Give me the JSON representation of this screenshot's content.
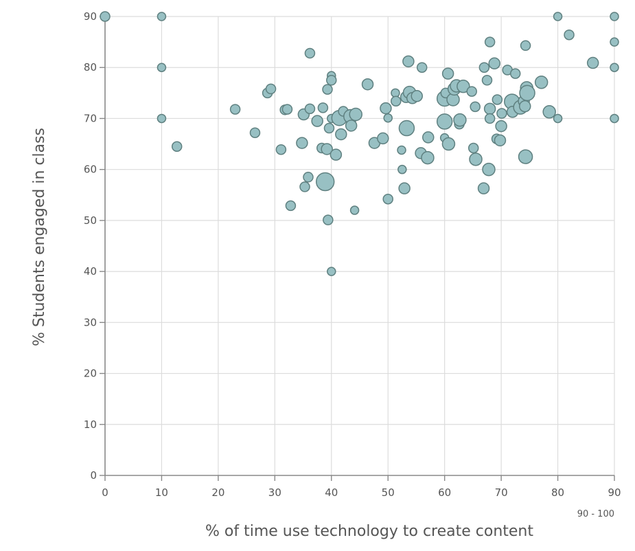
{
  "chart_data": {
    "type": "scatter",
    "title": "",
    "xlabel": "% of time use technology to create content",
    "ylabel": "% Students engaged in class",
    "x_ticks": [
      0,
      10,
      20,
      30,
      40,
      50,
      60,
      70,
      80,
      90
    ],
    "y_ticks": [
      0,
      10,
      20,
      30,
      40,
      50,
      60,
      70,
      80,
      90
    ],
    "x_tick_annotation": "90 - 100",
    "xlim": [
      0,
      90
    ],
    "ylim": [
      0,
      90
    ],
    "grid": true,
    "legend": null,
    "marker_color": "#98c0c3",
    "marker_edge_color": "#5f8080",
    "points": [
      {
        "x": 0,
        "y": 90,
        "r": 7
      },
      {
        "x": 10,
        "y": 90,
        "r": 6
      },
      {
        "x": 10,
        "y": 80,
        "r": 6
      },
      {
        "x": 10,
        "y": 70,
        "r": 6
      },
      {
        "x": 12.7,
        "y": 64.5,
        "r": 7
      },
      {
        "x": 23,
        "y": 71.8,
        "r": 7
      },
      {
        "x": 26.5,
        "y": 67.2,
        "r": 7
      },
      {
        "x": 28.7,
        "y": 75,
        "r": 7
      },
      {
        "x": 29.3,
        "y": 75.8,
        "r": 7
      },
      {
        "x": 31.1,
        "y": 63.9,
        "r": 7
      },
      {
        "x": 31.8,
        "y": 71.7,
        "r": 7
      },
      {
        "x": 32.2,
        "y": 71.8,
        "r": 7
      },
      {
        "x": 32.8,
        "y": 52.9,
        "r": 7
      },
      {
        "x": 34.8,
        "y": 65.2,
        "r": 8
      },
      {
        "x": 35.1,
        "y": 70.8,
        "r": 8
      },
      {
        "x": 35.3,
        "y": 56.6,
        "r": 7
      },
      {
        "x": 35.9,
        "y": 58.5,
        "r": 7
      },
      {
        "x": 36.2,
        "y": 82.8,
        "r": 7
      },
      {
        "x": 36.2,
        "y": 71.9,
        "r": 7
      },
      {
        "x": 37.5,
        "y": 69.5,
        "r": 8
      },
      {
        "x": 38.3,
        "y": 64.2,
        "r": 7
      },
      {
        "x": 38.5,
        "y": 72.1,
        "r": 7
      },
      {
        "x": 38.9,
        "y": 57.6,
        "r": 13
      },
      {
        "x": 39.2,
        "y": 64,
        "r": 8
      },
      {
        "x": 39.3,
        "y": 75.7,
        "r": 7
      },
      {
        "x": 39.4,
        "y": 50.1,
        "r": 7
      },
      {
        "x": 39.6,
        "y": 68.1,
        "r": 7
      },
      {
        "x": 40,
        "y": 78.4,
        "r": 6
      },
      {
        "x": 40,
        "y": 77.5,
        "r": 7
      },
      {
        "x": 40,
        "y": 70,
        "r": 6
      },
      {
        "x": 40,
        "y": 40,
        "r": 6
      },
      {
        "x": 40.8,
        "y": 62.9,
        "r": 8
      },
      {
        "x": 41.4,
        "y": 70.1,
        "r": 11
      },
      {
        "x": 41.7,
        "y": 66.9,
        "r": 8
      },
      {
        "x": 42.1,
        "y": 71.4,
        "r": 7
      },
      {
        "x": 43.4,
        "y": 70.4,
        "r": 10
      },
      {
        "x": 43.5,
        "y": 68.6,
        "r": 8
      },
      {
        "x": 44.1,
        "y": 52,
        "r": 6
      },
      {
        "x": 44.3,
        "y": 70.8,
        "r": 9
      },
      {
        "x": 46.4,
        "y": 76.7,
        "r": 8
      },
      {
        "x": 47.6,
        "y": 65.2,
        "r": 8
      },
      {
        "x": 49.1,
        "y": 66.1,
        "r": 8
      },
      {
        "x": 49.6,
        "y": 72,
        "r": 8
      },
      {
        "x": 50,
        "y": 70.1,
        "r": 6
      },
      {
        "x": 50,
        "y": 54.2,
        "r": 7
      },
      {
        "x": 51.3,
        "y": 75,
        "r": 6
      },
      {
        "x": 51.4,
        "y": 73.4,
        "r": 7
      },
      {
        "x": 52.4,
        "y": 63.8,
        "r": 6
      },
      {
        "x": 52.5,
        "y": 60,
        "r": 6
      },
      {
        "x": 52.9,
        "y": 56.3,
        "r": 8
      },
      {
        "x": 53.2,
        "y": 74.2,
        "r": 8
      },
      {
        "x": 53.3,
        "y": 68.1,
        "r": 11
      },
      {
        "x": 53.6,
        "y": 81.2,
        "r": 8
      },
      {
        "x": 53.8,
        "y": 75.1,
        "r": 9
      },
      {
        "x": 54.3,
        "y": 74,
        "r": 8
      },
      {
        "x": 55.1,
        "y": 74.4,
        "r": 8
      },
      {
        "x": 55.8,
        "y": 63.2,
        "r": 8
      },
      {
        "x": 56,
        "y": 80,
        "r": 7
      },
      {
        "x": 57,
        "y": 62.3,
        "r": 9
      },
      {
        "x": 57.1,
        "y": 66.3,
        "r": 8
      },
      {
        "x": 60,
        "y": 69.4,
        "r": 11
      },
      {
        "x": 60,
        "y": 73.9,
        "r": 11
      },
      {
        "x": 60,
        "y": 66.2,
        "r": 6
      },
      {
        "x": 60.2,
        "y": 75,
        "r": 7
      },
      {
        "x": 60.6,
        "y": 78.8,
        "r": 8
      },
      {
        "x": 60.7,
        "y": 65,
        "r": 9
      },
      {
        "x": 61.5,
        "y": 73.7,
        "r": 9
      },
      {
        "x": 61.7,
        "y": 75.8,
        "r": 9
      },
      {
        "x": 62.1,
        "y": 76.4,
        "r": 9
      },
      {
        "x": 62.6,
        "y": 68.9,
        "r": 7
      },
      {
        "x": 62.7,
        "y": 69.7,
        "r": 9
      },
      {
        "x": 63.3,
        "y": 76.3,
        "r": 9
      },
      {
        "x": 64.8,
        "y": 75.3,
        "r": 7
      },
      {
        "x": 65.1,
        "y": 64.2,
        "r": 7
      },
      {
        "x": 65.4,
        "y": 72.3,
        "r": 7
      },
      {
        "x": 65.5,
        "y": 62,
        "r": 9
      },
      {
        "x": 66.9,
        "y": 56.3,
        "r": 8
      },
      {
        "x": 67,
        "y": 80,
        "r": 7
      },
      {
        "x": 67.5,
        "y": 77.5,
        "r": 7
      },
      {
        "x": 67.8,
        "y": 60,
        "r": 9
      },
      {
        "x": 68,
        "y": 85,
        "r": 7
      },
      {
        "x": 68,
        "y": 71.9,
        "r": 8
      },
      {
        "x": 68,
        "y": 70,
        "r": 7
      },
      {
        "x": 68.8,
        "y": 80.8,
        "r": 8
      },
      {
        "x": 69.2,
        "y": 66,
        "r": 7
      },
      {
        "x": 69.3,
        "y": 73.7,
        "r": 7
      },
      {
        "x": 69.8,
        "y": 65.7,
        "r": 8
      },
      {
        "x": 70,
        "y": 68.5,
        "r": 8
      },
      {
        "x": 70.1,
        "y": 71,
        "r": 7
      },
      {
        "x": 71.1,
        "y": 79.5,
        "r": 7
      },
      {
        "x": 71.9,
        "y": 73.3,
        "r": 11
      },
      {
        "x": 72,
        "y": 71.3,
        "r": 8
      },
      {
        "x": 72.5,
        "y": 78.8,
        "r": 7
      },
      {
        "x": 73.4,
        "y": 72.2,
        "r": 10
      },
      {
        "x": 74,
        "y": 73.4,
        "r": 8
      },
      {
        "x": 74.2,
        "y": 72.4,
        "r": 8
      },
      {
        "x": 74.3,
        "y": 84.3,
        "r": 7
      },
      {
        "x": 74.3,
        "y": 62.5,
        "r": 10
      },
      {
        "x": 74.5,
        "y": 76,
        "r": 9
      },
      {
        "x": 74.6,
        "y": 75,
        "r": 11
      },
      {
        "x": 77.1,
        "y": 77.1,
        "r": 9
      },
      {
        "x": 78.5,
        "y": 71.3,
        "r": 9
      },
      {
        "x": 80,
        "y": 90,
        "r": 6
      },
      {
        "x": 80,
        "y": 70,
        "r": 6
      },
      {
        "x": 82,
        "y": 86.4,
        "r": 7
      },
      {
        "x": 86.2,
        "y": 80.9,
        "r": 8
      },
      {
        "x": 90,
        "y": 90,
        "r": 6
      },
      {
        "x": 90,
        "y": 85,
        "r": 6
      },
      {
        "x": 90,
        "y": 80,
        "r": 6
      },
      {
        "x": 90,
        "y": 70,
        "r": 6
      }
    ]
  }
}
